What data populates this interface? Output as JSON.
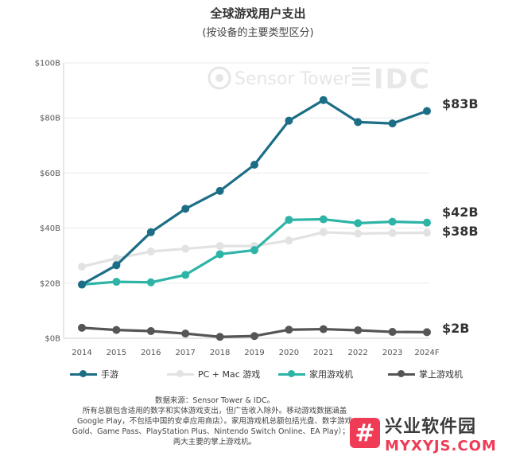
{
  "chart_data": {
    "type": "line",
    "title": "全球游戏用户支出",
    "subtitle": "(按设备的主要类型区分)",
    "x": [
      "2014",
      "2015",
      "2016",
      "2017",
      "2018",
      "2019",
      "2020",
      "2021",
      "2022",
      "2023",
      "2024F"
    ],
    "y_ticks": [
      "$0B",
      "$20B",
      "$40B",
      "$60B",
      "$80B",
      "$100B"
    ],
    "ylim": [
      0,
      100
    ],
    "grid": "horizontal",
    "legend_position": "bottom",
    "series": [
      {
        "name": "手游",
        "color": "#1c6e86",
        "values": [
          19.5,
          26.5,
          38.5,
          47,
          53.5,
          63,
          79,
          86.5,
          78.5,
          78,
          82.5
        ],
        "end_label": "$83B"
      },
      {
        "name": "PC + Mac 游戏",
        "color": "#e2e2e2",
        "values": [
          26,
          29,
          31.5,
          32.5,
          33.5,
          33.5,
          35.5,
          38.5,
          38,
          38.2,
          38.3
        ],
        "end_label": "$38B"
      },
      {
        "name": "家用游戏机",
        "color": "#2db4a6",
        "values": [
          19.5,
          20.5,
          20.3,
          23,
          30.5,
          32,
          43,
          43.2,
          41.8,
          42.3,
          42
        ],
        "end_label": "$42B"
      },
      {
        "name": "掌上游戏机",
        "color": "#555555",
        "values": [
          3.8,
          3,
          2.6,
          1.7,
          0.5,
          0.8,
          3.1,
          3.3,
          2.9,
          2.3,
          2.2
        ],
        "end_label": "$2B"
      }
    ],
    "watermark": {
      "brand": "Sensor Tower",
      "partner": "IDC"
    }
  },
  "notes": {
    "line1": "数据来源：Sensor Tower & IDC。",
    "line2": "所有总额包含适用的数字和实体游戏支出，但广告收入除外。移动游戏数据涵盖",
    "line3": "Google Play，不包括中国的安卓应用商店）。家用游戏机总额包括光盘、数字游戏",
    "line4": "Gold、Game Pass、PlayStation Plus、Nintendo Switch Online、EA Play）；任",
    "line5": "两大主要的掌上游戏机。"
  },
  "logo": {
    "mark": "#",
    "cn": "兴业软件园",
    "en": "MYXYJS.COM"
  }
}
